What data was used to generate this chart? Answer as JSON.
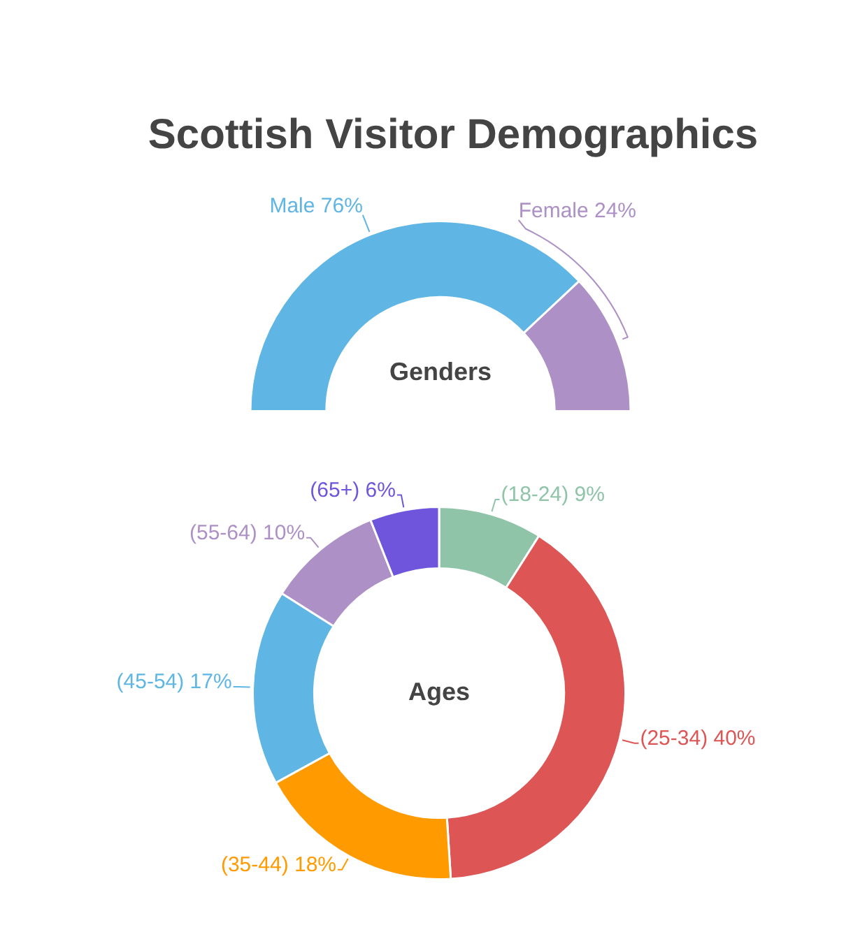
{
  "chart_data": [
    {
      "type": "donut",
      "title": "Scottish Visitor Demographics",
      "categories": [
        "Male",
        "Female"
      ],
      "values": [
        76,
        24
      ],
      "colors": [
        "#5fb6e4",
        "#ad91c6"
      ],
      "value_labels": [
        "76%",
        "24%"
      ],
      "annotations": [
        "Genders"
      ]
    },
    {
      "type": "donut",
      "categories": [
        "(18-24)",
        "(25-34)",
        "(35-44)",
        "(45-54)",
        "(55-64)",
        "(65+)"
      ],
      "values": [
        9,
        40,
        18,
        17,
        10,
        6
      ],
      "colors": [
        "#8fc4a8",
        "#dd5555",
        "#ff9b00",
        "#5fb6e4",
        "#ad91c6",
        "#6e55dc"
      ],
      "value_labels": [
        "9%",
        "40%",
        "18%",
        "17%",
        "10%",
        "6%"
      ],
      "annotations": [
        "Ages"
      ]
    }
  ]
}
